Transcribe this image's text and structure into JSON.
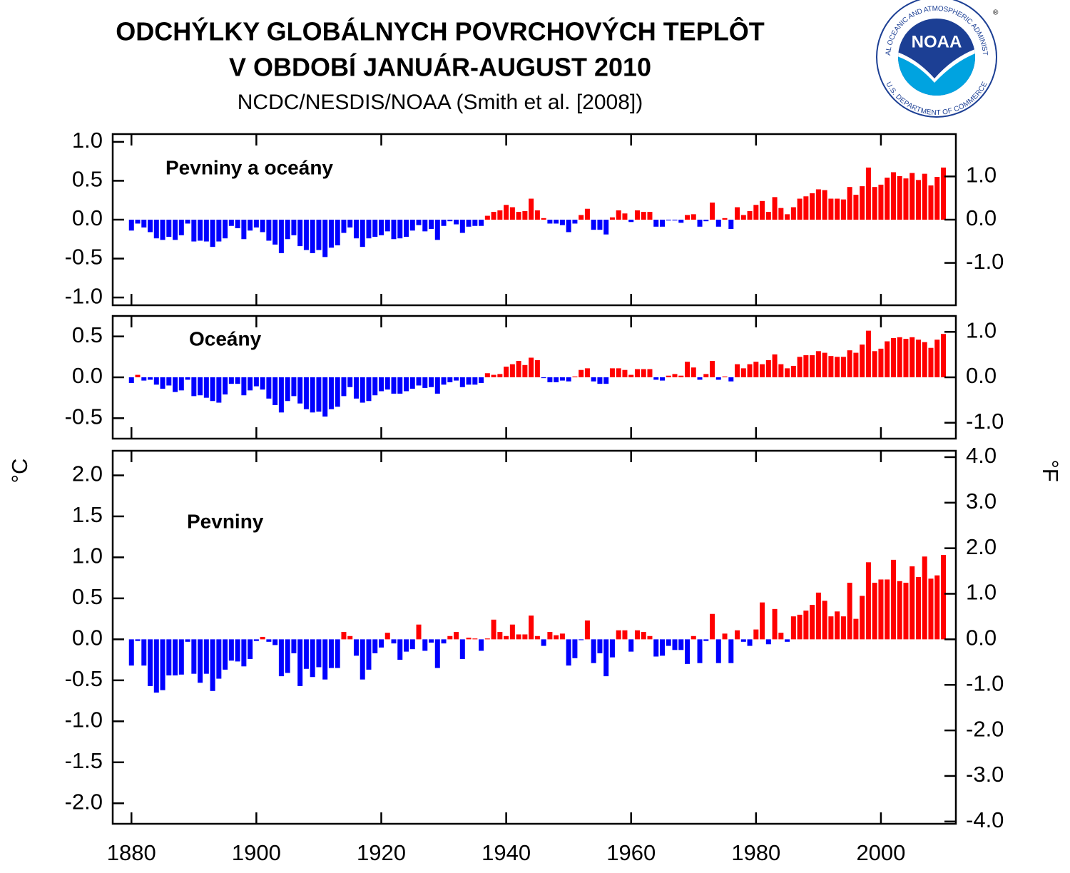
{
  "header": {
    "title": "ODCHÝLKY GLOBÁLNYCH POVRCHOVÝCH TEPLÔT",
    "title2": "V OBDOBÍ JANUÁR-AUGUST 2010",
    "subtitle": "NCDC/NESDIS/NOAA (Smith et al. [2008])"
  },
  "logo": {
    "text": "NOAA",
    "top_ring": "NATIONAL OCEANIC AND ATMOSPHERIC ADMINISTRATION",
    "bottom_ring": "U.S. DEPARTMENT OF COMMERCE",
    "mark": "®"
  },
  "chart_data": [
    {
      "type": "bar",
      "label": "Pevniny a oceány",
      "positive_color": "#ff0000",
      "negative_color": "#0000ff",
      "show_xtick_labels": false,
      "xlim": [
        1877,
        2012
      ],
      "xticks": [
        1880,
        1900,
        1920,
        1940,
        1960,
        1980,
        2000
      ],
      "ylim": [
        -1.1,
        1.1
      ],
      "yticks": [
        {
          "value": -1.0,
          "label": "-1.0"
        },
        -0.5,
        {
          "value": 0.0,
          "label": "0.0"
        },
        0.5,
        {
          "value": 1.0,
          "label": "1.0"
        }
      ],
      "y2lim": [
        -1.98,
        1.98
      ],
      "y2ticks": [
        {
          "value": -1.0,
          "label": "-1.0"
        },
        {
          "value": 0.0,
          "label": "0.0"
        },
        {
          "value": 1.0,
          "label": "1.0"
        }
      ],
      "x": [
        1880,
        1881,
        1882,
        1883,
        1884,
        1885,
        1886,
        1887,
        1888,
        1889,
        1890,
        1891,
        1892,
        1893,
        1894,
        1895,
        1896,
        1897,
        1898,
        1899,
        1900,
        1901,
        1902,
        1903,
        1904,
        1905,
        1906,
        1907,
        1908,
        1909,
        1910,
        1911,
        1912,
        1913,
        1914,
        1915,
        1916,
        1917,
        1918,
        1919,
        1920,
        1921,
        1922,
        1923,
        1924,
        1925,
        1926,
        1927,
        1928,
        1929,
        1930,
        1931,
        1932,
        1933,
        1934,
        1935,
        1936,
        1937,
        1938,
        1939,
        1940,
        1941,
        1942,
        1943,
        1944,
        1945,
        1946,
        1947,
        1948,
        1949,
        1950,
        1951,
        1952,
        1953,
        1954,
        1955,
        1956,
        1957,
        1958,
        1959,
        1960,
        1961,
        1962,
        1963,
        1964,
        1965,
        1966,
        1967,
        1968,
        1969,
        1970,
        1971,
        1972,
        1973,
        1974,
        1975,
        1976,
        1977,
        1978,
        1979,
        1980,
        1981,
        1982,
        1983,
        1984,
        1985,
        1986,
        1987,
        1988,
        1989,
        1990,
        1991,
        1992,
        1993,
        1994,
        1995,
        1996,
        1997,
        1998,
        1999,
        2000,
        2001,
        2002,
        2003,
        2004,
        2005,
        2006,
        2007,
        2008,
        2009,
        2010
      ],
      "values": [
        -0.14,
        -0.05,
        -0.1,
        -0.16,
        -0.24,
        -0.26,
        -0.22,
        -0.26,
        -0.2,
        -0.05,
        -0.28,
        -0.27,
        -0.28,
        -0.35,
        -0.28,
        -0.24,
        -0.08,
        -0.11,
        -0.25,
        -0.14,
        -0.1,
        -0.16,
        -0.27,
        -0.32,
        -0.43,
        -0.25,
        -0.2,
        -0.34,
        -0.39,
        -0.43,
        -0.39,
        -0.48,
        -0.36,
        -0.33,
        -0.17,
        -0.1,
        -0.24,
        -0.35,
        -0.24,
        -0.22,
        -0.2,
        -0.15,
        -0.25,
        -0.24,
        -0.22,
        -0.14,
        -0.07,
        -0.15,
        -0.12,
        -0.26,
        -0.08,
        -0.02,
        -0.06,
        -0.17,
        -0.09,
        -0.08,
        -0.08,
        0.05,
        0.1,
        0.12,
        0.19,
        0.16,
        0.1,
        0.11,
        0.27,
        0.12,
        0.02,
        -0.05,
        -0.05,
        -0.07,
        -0.16,
        -0.05,
        0.06,
        0.14,
        -0.13,
        -0.13,
        -0.19,
        0.03,
        0.12,
        0.08,
        -0.03,
        0.12,
        0.1,
        0.1,
        -0.09,
        -0.09,
        -0.01,
        -0.01,
        -0.04,
        0.06,
        0.07,
        -0.09,
        -0.02,
        0.22,
        -0.09,
        0.02,
        -0.12,
        0.16,
        0.06,
        0.11,
        0.19,
        0.24,
        0.1,
        0.29,
        0.15,
        0.07,
        0.16,
        0.27,
        0.3,
        0.34,
        0.39,
        0.38,
        0.27,
        0.27,
        0.26,
        0.42,
        0.32,
        0.43,
        0.67,
        0.42,
        0.45,
        0.54,
        0.61,
        0.56,
        0.53,
        0.6,
        0.51,
        0.59,
        0.44,
        0.55,
        0.67
      ]
    },
    {
      "type": "bar",
      "label": "Oceány",
      "positive_color": "#ff0000",
      "negative_color": "#0000ff",
      "show_xtick_labels": false,
      "xlim": [
        1877,
        2012
      ],
      "xticks": [
        1880,
        1900,
        1920,
        1940,
        1960,
        1980,
        2000
      ],
      "ylim": [
        -0.75,
        0.75
      ],
      "yticks": [
        -0.5,
        {
          "value": 0.0,
          "label": "0.0"
        },
        0.5
      ],
      "y2lim": [
        -1.35,
        1.35
      ],
      "y2ticks": [
        {
          "value": -1.0,
          "label": "-1.0"
        },
        {
          "value": 0.0,
          "label": "0.0"
        },
        {
          "value": 1.0,
          "label": "1.0"
        }
      ],
      "x": [
        1880,
        1881,
        1882,
        1883,
        1884,
        1885,
        1886,
        1887,
        1888,
        1889,
        1890,
        1891,
        1892,
        1893,
        1894,
        1895,
        1896,
        1897,
        1898,
        1899,
        1900,
        1901,
        1902,
        1903,
        1904,
        1905,
        1906,
        1907,
        1908,
        1909,
        1910,
        1911,
        1912,
        1913,
        1914,
        1915,
        1916,
        1917,
        1918,
        1919,
        1920,
        1921,
        1922,
        1923,
        1924,
        1925,
        1926,
        1927,
        1928,
        1929,
        1930,
        1931,
        1932,
        1933,
        1934,
        1935,
        1936,
        1937,
        1938,
        1939,
        1940,
        1941,
        1942,
        1943,
        1944,
        1945,
        1946,
        1947,
        1948,
        1949,
        1950,
        1951,
        1952,
        1953,
        1954,
        1955,
        1956,
        1957,
        1958,
        1959,
        1960,
        1961,
        1962,
        1963,
        1964,
        1965,
        1966,
        1967,
        1968,
        1969,
        1970,
        1971,
        1972,
        1973,
        1974,
        1975,
        1976,
        1977,
        1978,
        1979,
        1980,
        1981,
        1982,
        1983,
        1984,
        1985,
        1986,
        1987,
        1988,
        1989,
        1990,
        1991,
        1992,
        1993,
        1994,
        1995,
        1996,
        1997,
        1998,
        1999,
        2000,
        2001,
        2002,
        2003,
        2004,
        2005,
        2006,
        2007,
        2008,
        2009,
        2010
      ],
      "values": [
        -0.07,
        0.03,
        -0.04,
        -0.03,
        -0.09,
        -0.14,
        -0.1,
        -0.18,
        -0.16,
        -0.03,
        -0.23,
        -0.22,
        -0.25,
        -0.29,
        -0.31,
        -0.21,
        -0.08,
        -0.08,
        -0.22,
        -0.16,
        -0.11,
        -0.15,
        -0.26,
        -0.34,
        -0.43,
        -0.29,
        -0.23,
        -0.32,
        -0.39,
        -0.43,
        -0.42,
        -0.48,
        -0.39,
        -0.36,
        -0.23,
        -0.12,
        -0.26,
        -0.31,
        -0.29,
        -0.22,
        -0.17,
        -0.15,
        -0.2,
        -0.2,
        -0.17,
        -0.14,
        -0.1,
        -0.13,
        -0.12,
        -0.2,
        -0.09,
        -0.06,
        -0.04,
        -0.12,
        -0.09,
        -0.09,
        -0.07,
        0.05,
        0.03,
        0.04,
        0.13,
        0.16,
        0.2,
        0.15,
        0.24,
        0.21,
        -0.01,
        -0.06,
        -0.06,
        -0.04,
        -0.05,
        0.01,
        0.09,
        0.11,
        -0.05,
        -0.08,
        -0.08,
        0.11,
        0.11,
        0.09,
        0.03,
        0.1,
        0.1,
        0.1,
        -0.03,
        -0.04,
        0.02,
        0.04,
        0.02,
        0.19,
        0.12,
        -0.03,
        0.04,
        0.2,
        -0.03,
        0.01,
        -0.05,
        0.16,
        0.11,
        0.16,
        0.19,
        0.16,
        0.21,
        0.28,
        0.16,
        0.11,
        0.14,
        0.25,
        0.27,
        0.27,
        0.32,
        0.3,
        0.26,
        0.25,
        0.25,
        0.33,
        0.3,
        0.4,
        0.57,
        0.32,
        0.35,
        0.44,
        0.48,
        0.49,
        0.47,
        0.49,
        0.46,
        0.43,
        0.36,
        0.46,
        0.53
      ]
    },
    {
      "type": "bar",
      "label": "Pevniny",
      "ylabel": "°C",
      "y2label": "°F",
      "positive_color": "#ff0000",
      "negative_color": "#0000ff",
      "show_xtick_labels": true,
      "xlim": [
        1877,
        2012
      ],
      "xticks": [
        1880,
        1900,
        1920,
        1940,
        1960,
        1980,
        2000
      ],
      "ylim": [
        -2.25,
        2.3
      ],
      "yticks": [
        {
          "value": -2.0,
          "label": "-2.0"
        },
        -1.5,
        {
          "value": -1.0,
          "label": "-1.0"
        },
        -0.5,
        {
          "value": 0.0,
          "label": "0.0"
        },
        0.5,
        {
          "value": 1.0,
          "label": "1.0"
        },
        1.5,
        {
          "value": 2.0,
          "label": "2.0"
        }
      ],
      "y2lim": [
        -4.05,
        4.14
      ],
      "y2ticks": [
        {
          "value": -4.0,
          "label": "-4.0"
        },
        {
          "value": -3.0,
          "label": "-3.0"
        },
        {
          "value": -2.0,
          "label": "-2.0"
        },
        {
          "value": -1.0,
          "label": "-1.0"
        },
        {
          "value": 0.0,
          "label": "0.0"
        },
        {
          "value": 1.0,
          "label": "1.0"
        },
        {
          "value": 2.0,
          "label": "2.0"
        },
        {
          "value": 3.0,
          "label": "3.0"
        },
        {
          "value": 4.0,
          "label": "4.0"
        }
      ],
      "x": [
        1880,
        1881,
        1882,
        1883,
        1884,
        1885,
        1886,
        1887,
        1888,
        1889,
        1890,
        1891,
        1892,
        1893,
        1894,
        1895,
        1896,
        1897,
        1898,
        1899,
        1900,
        1901,
        1902,
        1903,
        1904,
        1905,
        1906,
        1907,
        1908,
        1909,
        1910,
        1911,
        1912,
        1913,
        1914,
        1915,
        1916,
        1917,
        1918,
        1919,
        1920,
        1921,
        1922,
        1923,
        1924,
        1925,
        1926,
        1927,
        1928,
        1929,
        1930,
        1931,
        1932,
        1933,
        1934,
        1935,
        1936,
        1937,
        1938,
        1939,
        1940,
        1941,
        1942,
        1943,
        1944,
        1945,
        1946,
        1947,
        1948,
        1949,
        1950,
        1951,
        1952,
        1953,
        1954,
        1955,
        1956,
        1957,
        1958,
        1959,
        1960,
        1961,
        1962,
        1963,
        1964,
        1965,
        1966,
        1967,
        1968,
        1969,
        1970,
        1971,
        1972,
        1973,
        1974,
        1975,
        1976,
        1977,
        1978,
        1979,
        1980,
        1981,
        1982,
        1983,
        1984,
        1985,
        1986,
        1987,
        1988,
        1989,
        1990,
        1991,
        1992,
        1993,
        1994,
        1995,
        1996,
        1997,
        1998,
        1999,
        2000,
        2001,
        2002,
        2003,
        2004,
        2005,
        2006,
        2007,
        2008,
        2009,
        2010
      ],
      "values": [
        -0.32,
        -0.02,
        -0.32,
        -0.57,
        -0.65,
        -0.62,
        -0.44,
        -0.44,
        -0.43,
        -0.03,
        -0.42,
        -0.53,
        -0.42,
        -0.63,
        -0.48,
        -0.37,
        -0.26,
        -0.27,
        -0.33,
        -0.24,
        -0.02,
        0.03,
        -0.03,
        -0.07,
        -0.45,
        -0.41,
        -0.17,
        -0.57,
        -0.36,
        -0.46,
        -0.34,
        -0.49,
        -0.35,
        -0.35,
        0.09,
        0.04,
        -0.2,
        -0.49,
        -0.37,
        -0.17,
        -0.1,
        0.08,
        -0.05,
        -0.25,
        -0.15,
        -0.12,
        0.18,
        -0.14,
        -0.04,
        -0.35,
        -0.05,
        0.04,
        0.09,
        -0.24,
        0.02,
        0.01,
        -0.14,
        0.01,
        0.24,
        0.09,
        0.04,
        0.18,
        0.06,
        0.06,
        0.29,
        0.04,
        -0.08,
        0.09,
        0.05,
        0.07,
        -0.32,
        -0.23,
        -0.01,
        0.23,
        -0.29,
        -0.17,
        -0.45,
        -0.22,
        0.11,
        0.11,
        -0.15,
        0.11,
        0.09,
        0.04,
        -0.21,
        -0.2,
        -0.08,
        -0.13,
        -0.13,
        -0.3,
        0.04,
        -0.29,
        -0.02,
        0.31,
        -0.29,
        0.07,
        -0.29,
        0.11,
        -0.03,
        -0.08,
        0.12,
        0.45,
        -0.06,
        0.37,
        0.08,
        -0.03,
        0.28,
        0.3,
        0.35,
        0.42,
        0.57,
        0.47,
        0.28,
        0.34,
        0.28,
        0.69,
        0.25,
        0.53,
        0.94,
        0.69,
        0.73,
        0.73,
        0.97,
        0.71,
        0.69,
        0.89,
        0.76,
        1.01,
        0.74,
        0.78,
        1.03
      ]
    }
  ]
}
